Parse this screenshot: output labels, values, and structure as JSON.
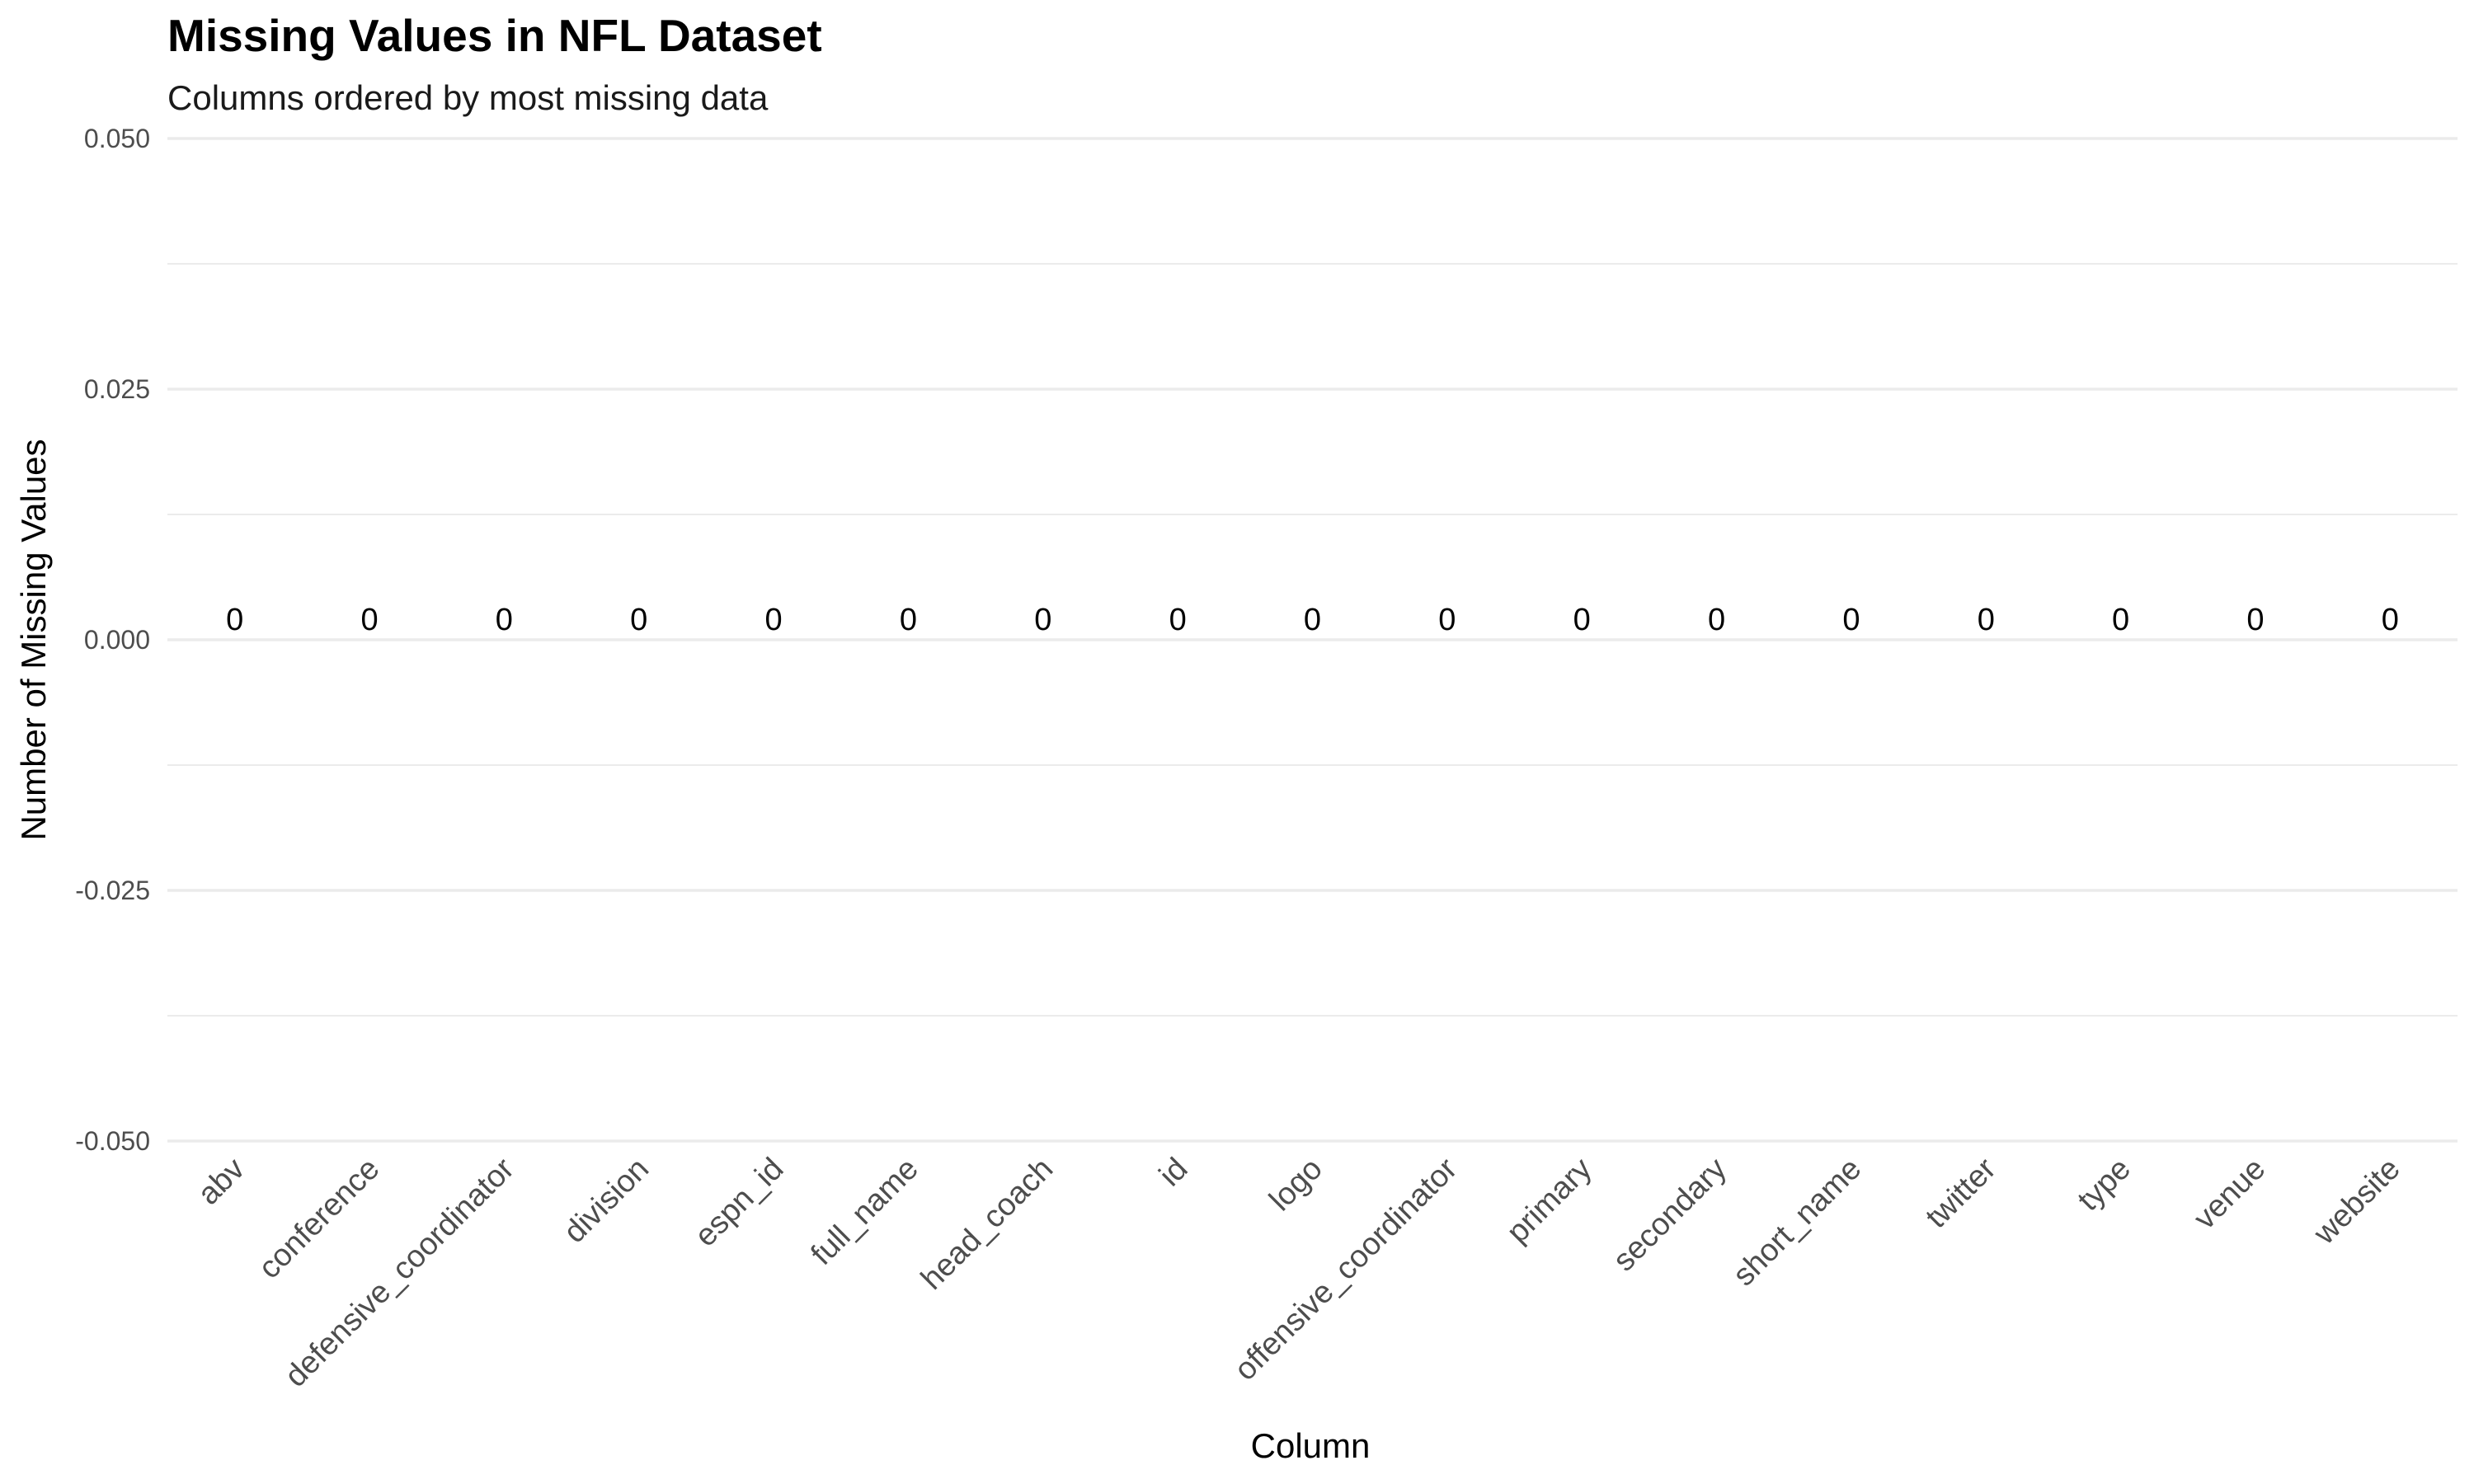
{
  "chart_data": {
    "type": "bar",
    "title": "Missing Values in NFL Dataset",
    "subtitle": "Columns ordered by most missing data",
    "xlabel": "Column",
    "ylabel": "Number of Missing Values",
    "categories": [
      "abv",
      "conference",
      "defensive_coordinator",
      "division",
      "espn_id",
      "full_name",
      "head_coach",
      "id",
      "logo",
      "offensive_coordinator",
      "primary",
      "secondary",
      "short_name",
      "twitter",
      "type",
      "venue",
      "website"
    ],
    "values": [
      0,
      0,
      0,
      0,
      0,
      0,
      0,
      0,
      0,
      0,
      0,
      0,
      0,
      0,
      0,
      0,
      0
    ],
    "data_labels": [
      "0",
      "0",
      "0",
      "0",
      "0",
      "0",
      "0",
      "0",
      "0",
      "0",
      "0",
      "0",
      "0",
      "0",
      "0",
      "0",
      "0"
    ],
    "ylim": [
      -0.05,
      0.05
    ],
    "yticks": [
      -0.05,
      -0.025,
      0,
      0.025,
      0.05
    ],
    "ytick_labels": [
      "-0.050",
      "-0.025",
      "0.000",
      "0.025",
      "0.050"
    ],
    "grid": true,
    "legend": "none",
    "colors": {
      "grid": "#ebebeb",
      "background": "#ffffff"
    }
  }
}
